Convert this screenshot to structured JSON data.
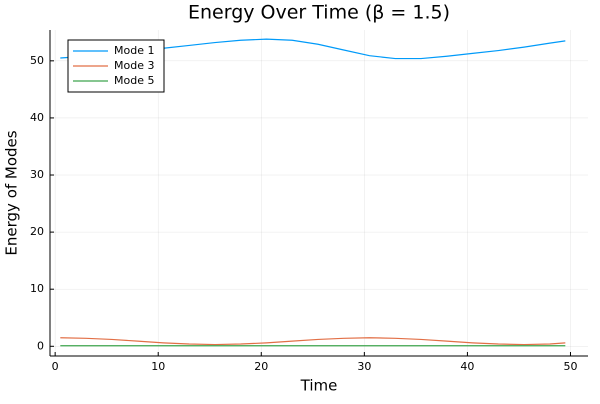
{
  "chart_data": {
    "type": "line",
    "title": "Energy Over Time (β = 1.5)",
    "xlabel": "Time",
    "ylabel": "Energy of Modes",
    "x": [
      0.5,
      3,
      5.5,
      8,
      10.5,
      13,
      15.5,
      18,
      20.5,
      23,
      25.5,
      28,
      30.5,
      33,
      35.5,
      38,
      40.5,
      43,
      45.5,
      48,
      49.5
    ],
    "series": [
      {
        "name": "Mode 1",
        "color": "#009af9",
        "values": [
          50.5,
          50.8,
          51.2,
          51.7,
          52.2,
          52.7,
          53.2,
          53.6,
          53.8,
          53.6,
          52.9,
          51.9,
          50.9,
          50.4,
          50.4,
          50.8,
          51.3,
          51.8,
          52.4,
          53.1,
          53.5
        ]
      },
      {
        "name": "Mode 3",
        "color": "#e26f46",
        "values": [
          1.5,
          1.4,
          1.2,
          0.9,
          0.6,
          0.4,
          0.3,
          0.4,
          0.6,
          0.9,
          1.2,
          1.4,
          1.5,
          1.4,
          1.2,
          0.9,
          0.6,
          0.4,
          0.3,
          0.4,
          0.6
        ]
      },
      {
        "name": "Mode 5",
        "color": "#3da44d",
        "values": [
          0.1,
          0.1,
          0.1,
          0.1,
          0.1,
          0.1,
          0.1,
          0.1,
          0.1,
          0.1,
          0.1,
          0.1,
          0.1,
          0.1,
          0.1,
          0.1,
          0.1,
          0.1,
          0.1,
          0.1,
          0.1
        ]
      }
    ],
    "xlim": [
      -0.5,
      51.7
    ],
    "ylim": [
      -1.7,
      55.4
    ],
    "xticks": [
      0,
      10,
      20,
      30,
      40,
      50
    ],
    "yticks": [
      0,
      10,
      20,
      30,
      40,
      50
    ],
    "grid": true,
    "legend": "top-left"
  }
}
